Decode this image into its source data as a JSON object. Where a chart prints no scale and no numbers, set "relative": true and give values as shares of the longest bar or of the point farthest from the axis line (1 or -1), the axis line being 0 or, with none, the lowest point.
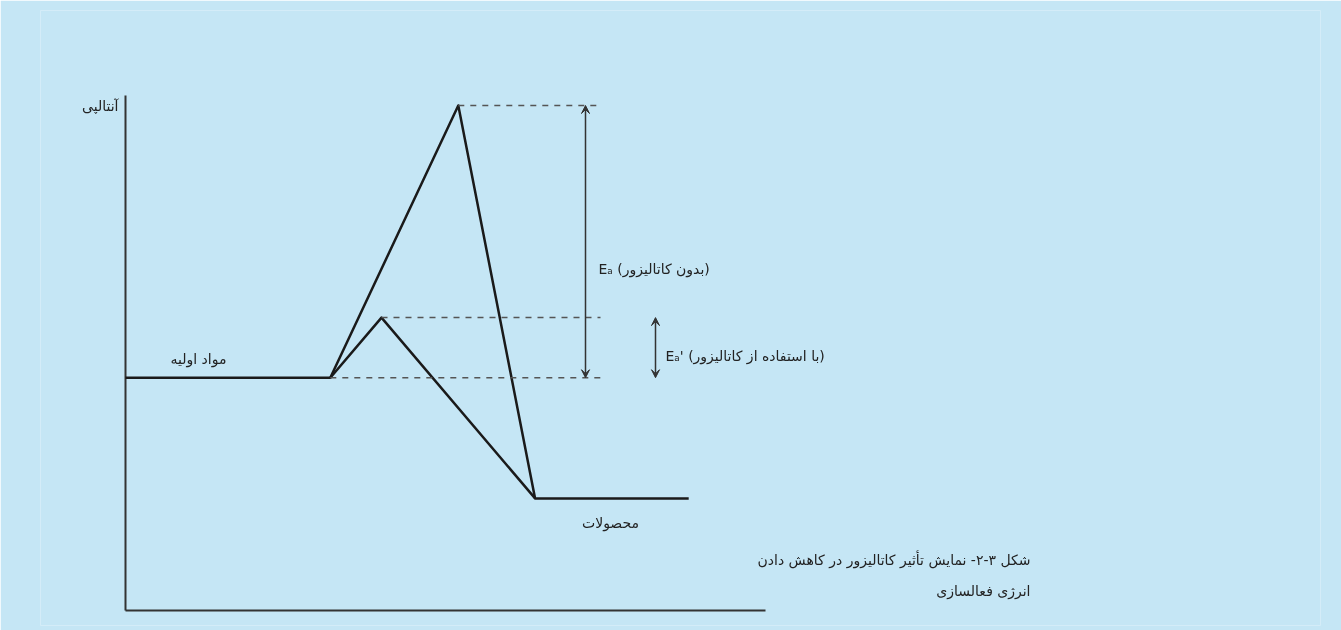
{
  "chart_data": {
    "type": "line",
    "relative": true,
    "ylabel": "آنتالپی",
    "marker": "none",
    "line_style": "solid",
    "categories": [
      null,
      null,
      null,
      null,
      null,
      null,
      null,
      null,
      null,
      null,
      null,
      null,
      null,
      null,
      null,
      null,
      null,
      null,
      null,
      null,
      null,
      null,
      null,
      null,
      null,
      null
    ],
    "series": [
      {
        "color": "#1a1a1a",
        "values": [
          0.461,
          null,
          null,
          null,
          null,
          null,
          null,
          null,
          0.461,
          null,
          null,
          null,
          null,
          1,
          null,
          null,
          0.222,
          null,
          null,
          null,
          null,
          null,
          0.222,
          null,
          null,
          null
        ]
      },
      {
        "color": "#1a1a1a",
        "values": [
          null,
          null,
          null,
          null,
          null,
          null,
          null,
          null,
          0.461,
          null,
          0.58,
          null,
          null,
          null,
          null,
          null,
          0.222,
          null,
          null,
          null,
          null,
          null,
          null,
          null,
          null,
          null
        ]
      }
    ],
    "ref_lines": [
      {
        "axis": "y",
        "value": 1,
        "color": "#555555",
        "line_style": "dashed"
      },
      {
        "axis": "y",
        "value": 0.58,
        "color": "#555555",
        "line_style": "dashed"
      },
      {
        "axis": "y",
        "value": 0.461,
        "color": "#555555",
        "line_style": "dashed"
      }
    ],
    "annotations": [
      "مواد اولیه",
      "محصولات",
      "Eₐ (بدون کاتالیزور)",
      "Eₐ' (با استفاده از کاتالیزور)",
      "شکل ۳-۲- نمایش تأثیر کاتالیزور در کاهش دادن\nانرژی فعالسازی"
    ]
  }
}
